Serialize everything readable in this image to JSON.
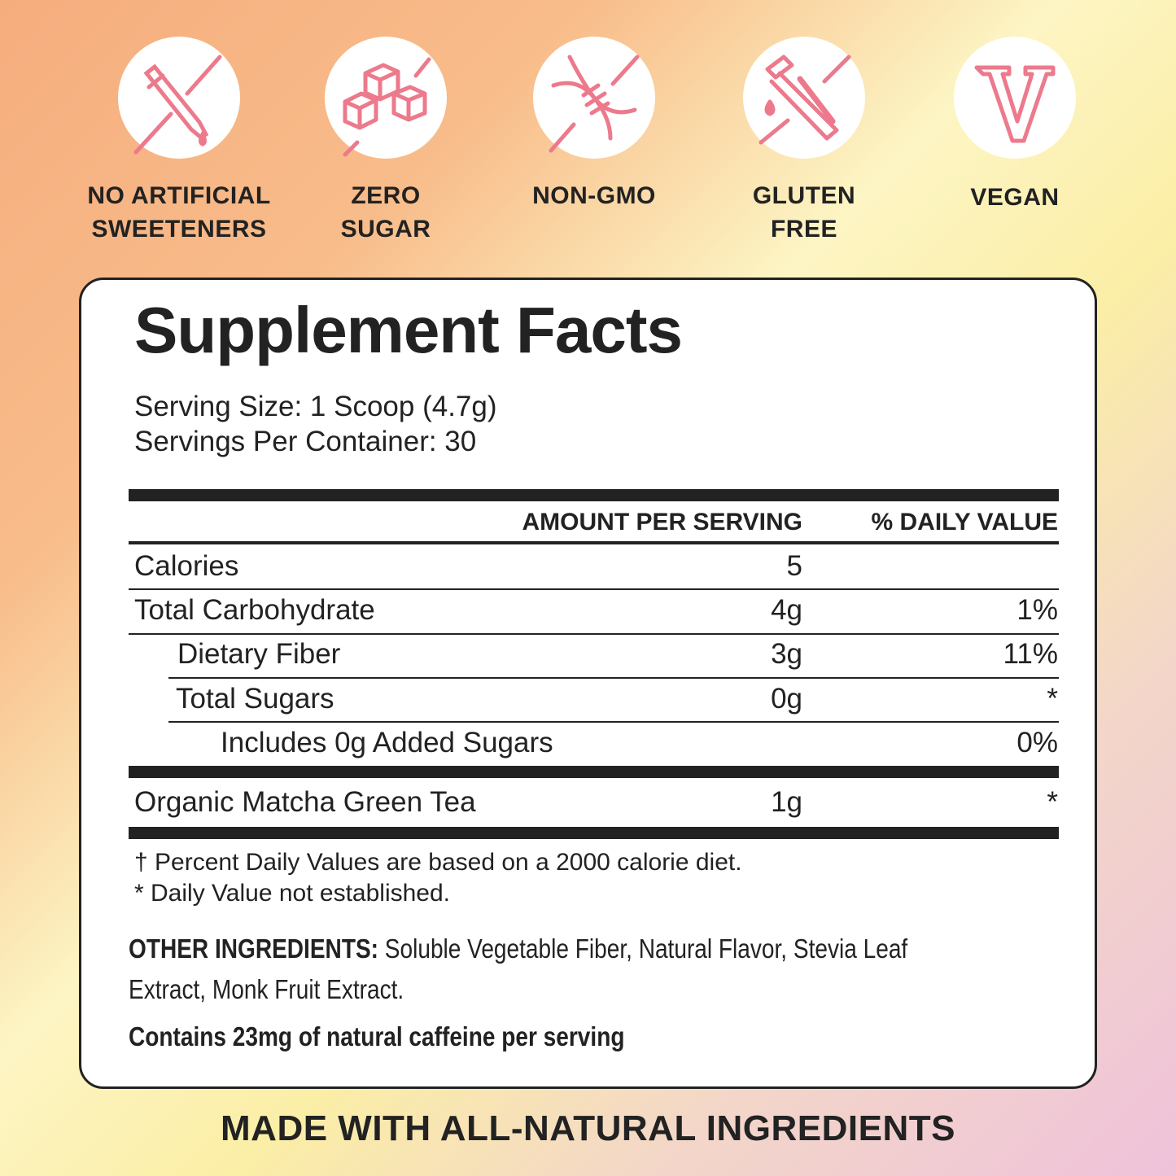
{
  "badges": [
    {
      "icon": "dropper-crossed-icon",
      "label": "NO ARTIFICIAL\nSWEETENERS"
    },
    {
      "icon": "sugar-cubes-crossed-icon",
      "label": "ZERO\nSUGAR"
    },
    {
      "icon": "dna-crossed-icon",
      "label": "NON-GMO"
    },
    {
      "icon": "test-tube-crossed-icon",
      "label": "GLUTEN\nFREE"
    },
    {
      "icon": "vegan-v-icon",
      "label": "VEGAN"
    }
  ],
  "colors": {
    "accent": "#ec7a8c",
    "text": "#222222"
  },
  "facts": {
    "title": "Supplement Facts",
    "serving_size": "Serving Size: 1 Scoop (4.7g)",
    "servings_per_container": "Servings Per Container: 30",
    "header_amount": "AMOUNT PER SERVING",
    "header_dv": "% DAILY VALUE",
    "rows": [
      {
        "name": "Calories",
        "amount": "5",
        "dv": ""
      },
      {
        "name": "Total Carbohydrate",
        "amount": "4g",
        "dv": "1%"
      },
      {
        "name": "Dietary Fiber",
        "amount": "3g",
        "dv": "11%"
      },
      {
        "name": "Total Sugars",
        "amount": "0g",
        "dv": "*"
      },
      {
        "name": "Includes 0g Added Sugars",
        "amount": "",
        "dv": "0%"
      },
      {
        "name": "Organic Matcha Green Tea",
        "amount": "1g",
        "dv": "*"
      }
    ],
    "footnote1": "† Percent Daily Values are based on a 2000 calorie diet.",
    "footnote2": "* Daily Value not established.",
    "other_label": "OTHER INGREDIENTS:",
    "other_text1": " Soluble Vegetable Fiber, Natural Flavor, Stevia Leaf",
    "other_text2": "Extract, Monk Fruit Extract.",
    "caffeine": "Contains 23mg of natural caffeine per serving"
  },
  "tagline": "MADE WITH ALL-NATURAL INGREDIENTS"
}
